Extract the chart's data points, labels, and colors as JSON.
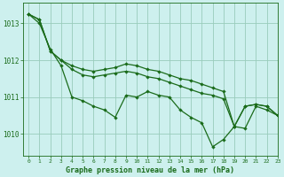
{
  "title": "Graphe pression niveau de la mer (hPa)",
  "bg_color": "#cdf0ee",
  "grid_color": "#99ccbb",
  "line_color": "#1a6b1a",
  "xlim": [
    -0.5,
    23
  ],
  "ylim": [
    1009.4,
    1013.55
  ],
  "yticks": [
    1010,
    1011,
    1012,
    1013
  ],
  "xticks": [
    0,
    1,
    2,
    3,
    4,
    5,
    6,
    7,
    8,
    9,
    10,
    11,
    12,
    13,
    14,
    15,
    16,
    17,
    18,
    19,
    20,
    21,
    22,
    23
  ],
  "series": [
    [
      1013.25,
      1013.0,
      1012.3,
      1011.85,
      1011.0,
      1010.9,
      1010.75,
      1010.65,
      1010.45,
      1011.05,
      1011.0,
      1011.15,
      1011.05,
      1011.0,
      1010.65,
      1010.45,
      1010.3,
      1009.65,
      1009.85,
      1010.2,
      1010.15,
      1010.75,
      1010.65,
      1010.5
    ],
    [
      1013.25,
      1013.1,
      1012.25,
      1012.0,
      1011.75,
      1011.6,
      1011.55,
      1011.6,
      1011.65,
      1011.7,
      1011.65,
      1011.55,
      1011.5,
      1011.4,
      1011.3,
      1011.2,
      1011.1,
      1011.05,
      1010.95,
      1010.2,
      1010.75,
      1010.8,
      1010.75,
      1010.5
    ],
    [
      1013.25,
      1013.1,
      1012.25,
      1012.0,
      1011.85,
      1011.75,
      1011.7,
      1011.75,
      1011.8,
      1011.9,
      1011.85,
      1011.75,
      1011.7,
      1011.6,
      1011.5,
      1011.45,
      1011.35,
      1011.25,
      1011.15,
      1010.2,
      1010.75,
      1010.8,
      1010.75,
      1010.5
    ]
  ]
}
